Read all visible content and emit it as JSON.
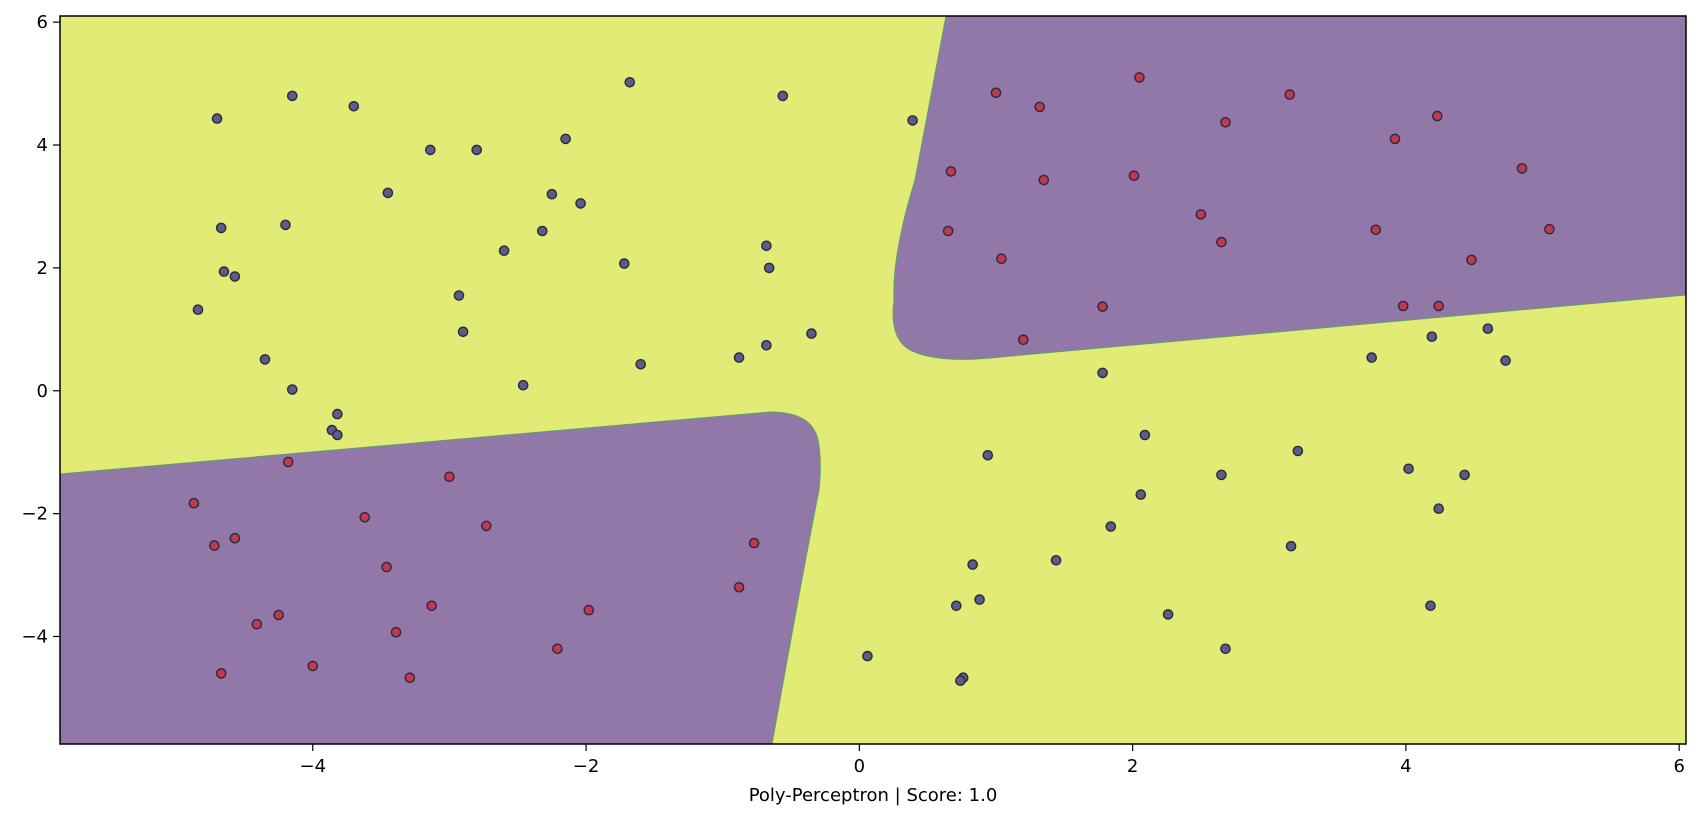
{
  "chart_data": {
    "type": "scatter",
    "xlabel": "Poly-Perceptron | Score: 1.0",
    "ylabel": "",
    "xlim": [
      -5.85,
      6.05
    ],
    "ylim": [
      -5.75,
      6.1
    ],
    "x_ticks": [
      -4,
      -2,
      0,
      2,
      4,
      6
    ],
    "y_ticks": [
      -4,
      -2,
      0,
      2,
      4,
      6
    ],
    "grid": false,
    "region_colors": {
      "positive": "#9178a8",
      "negative": "#e1eb76"
    },
    "point_colors": {
      "red": "#c0394f",
      "blue": "#5a5d8a"
    },
    "series": [
      {
        "color": "red",
        "points": [
          [
            1.0,
            4.85
          ],
          [
            2.05,
            5.1
          ],
          [
            3.15,
            4.82
          ],
          [
            1.32,
            4.62
          ],
          [
            2.68,
            4.37
          ],
          [
            4.23,
            4.47
          ],
          [
            3.92,
            4.1
          ],
          [
            4.85,
            3.62
          ],
          [
            0.67,
            3.57
          ],
          [
            1.35,
            3.43
          ],
          [
            2.01,
            3.5
          ],
          [
            2.5,
            2.87
          ],
          [
            3.78,
            2.62
          ],
          [
            5.05,
            2.63
          ],
          [
            0.65,
            2.6
          ],
          [
            2.65,
            2.42
          ],
          [
            1.04,
            2.15
          ],
          [
            4.48,
            2.13
          ],
          [
            1.78,
            1.37
          ],
          [
            3.98,
            1.38
          ],
          [
            4.24,
            1.38
          ],
          [
            1.2,
            0.83
          ],
          [
            -4.18,
            -1.16
          ],
          [
            -3.0,
            -1.4
          ],
          [
            -4.87,
            -1.83
          ],
          [
            -3.62,
            -2.06
          ],
          [
            -2.73,
            -2.2
          ],
          [
            -4.57,
            -2.4
          ],
          [
            -4.72,
            -2.52
          ],
          [
            -0.77,
            -2.48
          ],
          [
            -3.46,
            -2.87
          ],
          [
            -0.88,
            -3.2
          ],
          [
            -3.13,
            -3.5
          ],
          [
            -1.98,
            -3.57
          ],
          [
            -4.25,
            -3.65
          ],
          [
            -4.41,
            -3.8
          ],
          [
            -3.39,
            -3.93
          ],
          [
            -2.21,
            -4.2
          ],
          [
            -4.0,
            -4.48
          ],
          [
            -4.67,
            -4.6
          ],
          [
            -3.29,
            -4.67
          ]
        ]
      },
      {
        "color": "blue",
        "points": [
          [
            -4.15,
            4.8
          ],
          [
            -4.7,
            4.43
          ],
          [
            -3.7,
            4.63
          ],
          [
            -1.68,
            5.02
          ],
          [
            -0.56,
            4.8
          ],
          [
            0.39,
            4.4
          ],
          [
            -3.14,
            3.92
          ],
          [
            -2.8,
            3.92
          ],
          [
            -2.15,
            4.1
          ],
          [
            -3.45,
            3.22
          ],
          [
            -2.25,
            3.2
          ],
          [
            -2.04,
            3.05
          ],
          [
            -4.67,
            2.65
          ],
          [
            -4.2,
            2.7
          ],
          [
            -2.32,
            2.6
          ],
          [
            -0.68,
            2.36
          ],
          [
            -2.6,
            2.28
          ],
          [
            -1.72,
            2.07
          ],
          [
            -0.66,
            2.0
          ],
          [
            -4.65,
            1.94
          ],
          [
            -4.57,
            1.86
          ],
          [
            -2.93,
            1.55
          ],
          [
            -4.84,
            1.32
          ],
          [
            -2.9,
            0.96
          ],
          [
            -0.35,
            0.93
          ],
          [
            -0.88,
            0.54
          ],
          [
            -0.68,
            0.74
          ],
          [
            -4.35,
            0.51
          ],
          [
            -1.6,
            0.43
          ],
          [
            -2.46,
            0.09
          ],
          [
            -4.15,
            0.02
          ],
          [
            -3.82,
            -0.38
          ],
          [
            -3.86,
            -0.64
          ],
          [
            -3.82,
            -0.72
          ],
          [
            3.75,
            0.54
          ],
          [
            4.6,
            1.01
          ],
          [
            4.19,
            0.88
          ],
          [
            4.73,
            0.49
          ],
          [
            1.78,
            0.29
          ],
          [
            2.09,
            -0.72
          ],
          [
            3.21,
            -0.98
          ],
          [
            0.94,
            -1.05
          ],
          [
            4.02,
            -1.27
          ],
          [
            2.65,
            -1.37
          ],
          [
            4.43,
            -1.37
          ],
          [
            2.06,
            -1.69
          ],
          [
            4.24,
            -1.92
          ],
          [
            1.84,
            -2.21
          ],
          [
            3.16,
            -2.53
          ],
          [
            1.44,
            -2.76
          ],
          [
            0.83,
            -2.83
          ],
          [
            0.88,
            -3.4
          ],
          [
            0.71,
            -3.5
          ],
          [
            4.18,
            -3.5
          ],
          [
            2.26,
            -3.64
          ],
          [
            2.68,
            -4.2
          ],
          [
            0.06,
            -4.32
          ],
          [
            0.76,
            -4.67
          ],
          [
            0.74,
            -4.72
          ]
        ]
      }
    ]
  }
}
